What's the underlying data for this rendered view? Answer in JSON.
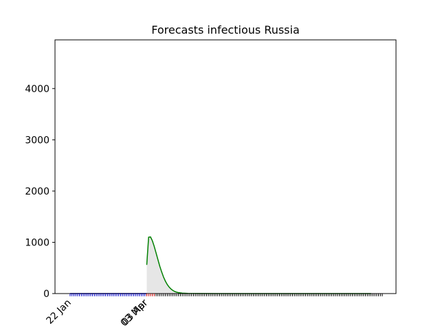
{
  "chart_data": {
    "type": "line",
    "title": "Forecasts infectious Russia",
    "xlabel": "",
    "ylabel": "",
    "x_start_date": "22 Jan",
    "x_tick_labels": [
      "22 Jan",
      "03 Mar",
      "03 Apr"
    ],
    "ylim": [
      0,
      4950
    ],
    "yticks": [
      0,
      1000,
      2000,
      3000,
      4000
    ],
    "grid": false,
    "series": [
      {
        "color": "#0000cc",
        "x": [
          "22 Jan",
          "03 Mar"
        ],
        "y": [
          0,
          0
        ]
      },
      {
        "color": "#008000",
        "x": [
          "03 Mar",
          "04 Mar",
          "05 Mar",
          "06 Mar",
          "07 Mar",
          "08 Mar",
          "09 Mar",
          "10 Mar",
          "11 Mar",
          "12 Mar",
          "13 Mar",
          "14 Mar",
          "15 Mar",
          "16 Mar",
          "17 Mar",
          "18 Mar",
          "19 Mar",
          "20 Mar",
          "22 Mar",
          "25 Mar",
          "30 Mar",
          "10 Apr",
          "01 May",
          "01 Jun",
          "01 Jul"
        ],
        "y": [
          560,
          1100,
          1105,
          1030,
          920,
          790,
          660,
          530,
          420,
          320,
          240,
          175,
          125,
          88,
          60,
          40,
          27,
          18,
          9,
          4,
          1,
          0,
          0,
          0,
          0
        ]
      }
    ],
    "shaded_band": {
      "color": "#e6e6e6",
      "x": [
        "03 Mar",
        "04 Mar",
        "05 Mar",
        "06 Mar",
        "07 Mar",
        "08 Mar",
        "09 Mar",
        "10 Mar",
        "11 Mar",
        "12 Mar",
        "13 Mar",
        "14 Mar",
        "15 Mar",
        "16 Mar",
        "17 Mar",
        "18 Mar",
        "19 Mar",
        "20 Mar",
        "22 Mar",
        "25 Mar",
        "30 Mar"
      ],
      "upper": [
        560,
        1100,
        1105,
        1030,
        920,
        790,
        660,
        530,
        420,
        320,
        240,
        175,
        125,
        88,
        60,
        40,
        27,
        18,
        9,
        4,
        1
      ],
      "lower": [
        0,
        0,
        0,
        0,
        0,
        0,
        0,
        0,
        0,
        0,
        0,
        0,
        0,
        0,
        0,
        0,
        0,
        0,
        0,
        0,
        0
      ]
    }
  }
}
